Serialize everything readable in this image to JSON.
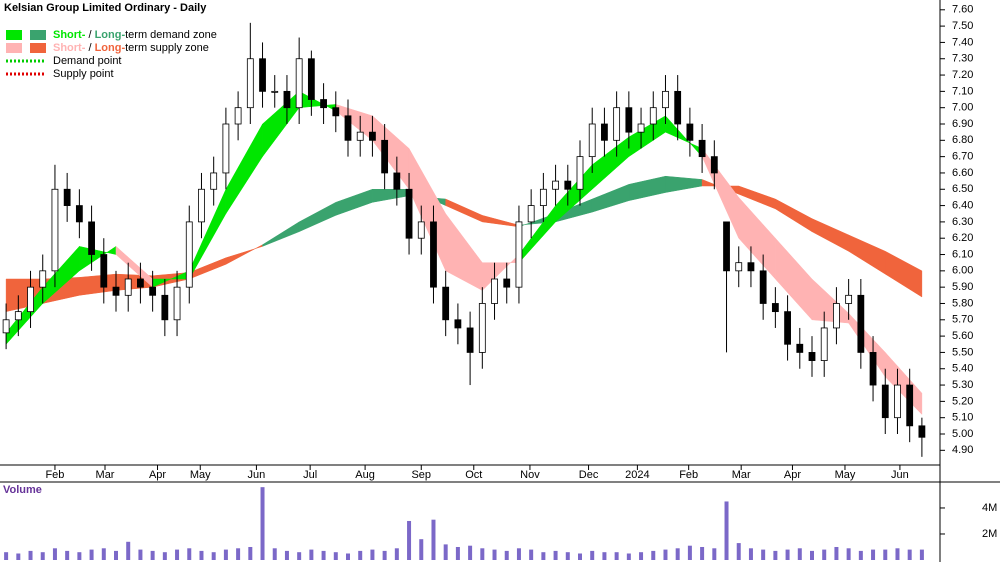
{
  "chart_data": [
    {
      "type": "candlestick",
      "title": "Kelsian Group Limited Ordinary - Daily",
      "x": [
        0,
        1,
        2,
        3,
        4,
        5,
        6,
        7,
        8,
        9,
        10,
        11,
        12,
        13,
        14,
        15,
        16,
        17,
        18,
        19,
        20,
        21,
        22,
        23,
        24,
        25,
        26,
        27,
        28,
        29,
        30,
        31,
        32,
        33,
        34,
        35,
        36,
        37,
        38,
        39,
        40,
        41,
        42,
        43,
        44,
        45,
        46,
        47,
        48,
        49,
        50,
        51,
        52,
        53,
        54,
        55,
        56,
        57,
        58,
        59,
        60,
        61,
        62,
        63,
        64,
        65,
        66,
        67,
        68,
        69,
        70,
        71,
        72,
        73,
        74,
        75
      ],
      "open": [
        5.62,
        5.7,
        5.75,
        5.9,
        6.0,
        6.5,
        6.4,
        6.3,
        6.1,
        5.9,
        5.85,
        5.95,
        5.9,
        5.85,
        5.7,
        5.9,
        6.3,
        6.5,
        6.6,
        6.9,
        7.0,
        7.3,
        7.1,
        7.1,
        7.0,
        7.3,
        7.05,
        7.0,
        6.95,
        6.8,
        6.85,
        6.8,
        6.6,
        6.5,
        6.2,
        6.3,
        5.9,
        5.7,
        5.65,
        5.5,
        5.8,
        5.95,
        5.9,
        6.3,
        6.4,
        6.5,
        6.55,
        6.5,
        6.7,
        6.9,
        6.8,
        7.0,
        6.85,
        6.9,
        7.0,
        7.1,
        6.9,
        6.8,
        6.7,
        6.3,
        6.0,
        6.05,
        6.0,
        5.8,
        5.75,
        5.55,
        5.5,
        5.45,
        5.65,
        5.8,
        5.85,
        5.5,
        5.3,
        5.1,
        5.3,
        5.05
      ],
      "high": [
        5.8,
        5.85,
        6.0,
        6.1,
        6.65,
        6.6,
        6.5,
        6.4,
        6.2,
        6.0,
        6.05,
        6.05,
        6.0,
        5.95,
        6.0,
        6.4,
        6.6,
        6.7,
        7.0,
        7.1,
        7.52,
        7.4,
        7.2,
        7.2,
        7.43,
        7.35,
        7.15,
        7.1,
        7.05,
        6.95,
        6.95,
        6.9,
        6.7,
        6.6,
        6.4,
        6.4,
        6.0,
        5.8,
        5.75,
        5.9,
        6.05,
        6.05,
        6.4,
        6.5,
        6.6,
        6.65,
        6.65,
        6.8,
        7.0,
        7.0,
        7.1,
        7.1,
        7.0,
        7.1,
        7.2,
        7.2,
        7.0,
        6.9,
        6.8,
        6.3,
        6.15,
        6.15,
        6.1,
        5.9,
        5.85,
        5.65,
        5.6,
        5.75,
        5.9,
        5.95,
        5.95,
        5.6,
        5.4,
        5.4,
        5.4,
        5.1
      ],
      "low": [
        5.52,
        5.6,
        5.65,
        5.8,
        5.9,
        6.3,
        6.2,
        6.0,
        5.8,
        5.75,
        5.75,
        5.8,
        5.75,
        5.6,
        5.6,
        5.8,
        6.2,
        6.4,
        6.5,
        6.8,
        6.9,
        7.0,
        7.0,
        6.9,
        6.9,
        6.95,
        6.9,
        6.85,
        6.7,
        6.7,
        6.7,
        6.5,
        6.4,
        6.1,
        6.1,
        5.8,
        5.6,
        5.55,
        5.3,
        5.4,
        5.7,
        5.8,
        5.8,
        6.2,
        6.3,
        6.4,
        6.4,
        6.4,
        6.6,
        6.7,
        6.7,
        6.75,
        6.75,
        6.8,
        6.9,
        6.8,
        6.7,
        6.6,
        6.5,
        5.5,
        5.9,
        5.9,
        5.7,
        5.65,
        5.45,
        5.4,
        5.35,
        5.35,
        5.55,
        5.7,
        5.4,
        5.2,
        5.0,
        5.0,
        4.95,
        4.86
      ],
      "close": [
        5.7,
        5.75,
        5.9,
        6.0,
        6.5,
        6.4,
        6.3,
        6.1,
        5.9,
        5.85,
        5.95,
        5.9,
        5.85,
        5.7,
        5.9,
        6.3,
        6.5,
        6.6,
        6.9,
        7.0,
        7.3,
        7.1,
        7.1,
        7.0,
        7.3,
        7.05,
        7.0,
        6.95,
        6.8,
        6.85,
        6.8,
        6.6,
        6.5,
        6.2,
        6.3,
        5.9,
        5.7,
        5.65,
        5.5,
        5.8,
        5.95,
        5.9,
        6.3,
        6.4,
        6.5,
        6.55,
        6.5,
        6.7,
        6.9,
        6.8,
        7.0,
        6.85,
        6.9,
        7.0,
        7.1,
        6.9,
        6.8,
        6.7,
        6.6,
        6.0,
        6.05,
        6.0,
        5.8,
        5.75,
        5.55,
        5.5,
        5.45,
        5.65,
        5.8,
        5.85,
        5.5,
        5.3,
        5.1,
        5.3,
        5.05,
        4.98
      ],
      "up_fill": "#ffffff",
      "down_fill": "#000000",
      "xlim": [
        -0.5,
        75.5
      ],
      "ylim": [
        4.81,
        7.66
      ],
      "xticks": [
        {
          "value": 4,
          "label": "Feb"
        },
        {
          "value": 8.1,
          "label": "Mar"
        },
        {
          "value": 12.4,
          "label": "Apr"
        },
        {
          "value": 15.9,
          "label": "May"
        },
        {
          "value": 20.5,
          "label": "Jun"
        },
        {
          "value": 24.9,
          "label": "Jul"
        },
        {
          "value": 29.4,
          "label": "Aug"
        },
        {
          "value": 34,
          "label": "Sep"
        },
        {
          "value": 38.3,
          "label": "Oct"
        },
        {
          "value": 42.9,
          "label": "Nov"
        },
        {
          "value": 47.7,
          "label": "Dec"
        },
        {
          "value": 51.7,
          "label": "2024"
        },
        {
          "value": 55.9,
          "label": "Feb"
        },
        {
          "value": 60.2,
          "label": "Mar"
        },
        {
          "value": 64.4,
          "label": "Apr"
        },
        {
          "value": 68.7,
          "label": "May"
        },
        {
          "value": 73.2,
          "label": "Jun"
        }
      ],
      "yticks": [
        {
          "value": 4.9,
          "label": "4.90"
        },
        {
          "value": 5.0,
          "label": "5.00"
        },
        {
          "value": 5.1,
          "label": "5.10"
        },
        {
          "value": 5.2,
          "label": "5.20"
        },
        {
          "value": 5.3,
          "label": "5.30"
        },
        {
          "value": 5.4,
          "label": "5.40"
        },
        {
          "value": 5.5,
          "label": "5.50"
        },
        {
          "value": 5.6,
          "label": "5.60"
        },
        {
          "value": 5.7,
          "label": "5.70"
        },
        {
          "value": 5.8,
          "label": "5.80"
        },
        {
          "value": 5.9,
          "label": "5.90"
        },
        {
          "value": 6.0,
          "label": "6.00"
        },
        {
          "value": 6.1,
          "label": "6.10"
        },
        {
          "value": 6.2,
          "label": "6.20"
        },
        {
          "value": 6.3,
          "label": "6.30"
        },
        {
          "value": 6.4,
          "label": "6.40"
        },
        {
          "value": 6.5,
          "label": "6.50"
        },
        {
          "value": 6.6,
          "label": "6.60"
        },
        {
          "value": 6.7,
          "label": "6.70"
        },
        {
          "value": 6.8,
          "label": "6.80"
        },
        {
          "value": 6.9,
          "label": "6.90"
        },
        {
          "value": 7.0,
          "label": "7.00"
        },
        {
          "value": 7.1,
          "label": "7.10"
        },
        {
          "value": 7.2,
          "label": "7.20"
        },
        {
          "value": 7.3,
          "label": "7.30"
        },
        {
          "value": 7.4,
          "label": "7.40"
        },
        {
          "value": 7.5,
          "label": "7.50"
        },
        {
          "value": 7.6,
          "label": "7.60"
        }
      ],
      "bands": {
        "x": [
          0,
          3,
          6,
          9,
          12,
          15,
          18,
          21,
          24,
          27,
          30,
          33,
          36,
          39,
          42,
          45,
          48,
          51,
          54,
          57,
          60,
          63,
          66,
          69,
          72,
          75
        ],
        "short_fast": [
          5.62,
          5.9,
          6.15,
          6.1,
          5.9,
          6.0,
          6.5,
          6.9,
          7.1,
          6.98,
          6.8,
          6.5,
          6.0,
          5.88,
          6.1,
          6.4,
          6.65,
          6.82,
          6.95,
          6.7,
          6.2,
          5.95,
          5.7,
          5.68,
          5.35,
          5.12
        ],
        "short_slow": [
          5.55,
          5.8,
          6.0,
          6.15,
          5.95,
          5.95,
          6.35,
          6.7,
          7.0,
          7.02,
          6.95,
          6.75,
          6.35,
          6.05,
          6.05,
          6.3,
          6.5,
          6.7,
          6.85,
          6.75,
          6.45,
          6.2,
          5.95,
          5.74,
          5.5,
          5.25
        ],
        "long_fast": [
          5.75,
          5.8,
          5.85,
          5.88,
          5.9,
          5.95,
          6.04,
          6.16,
          6.3,
          6.42,
          6.5,
          6.5,
          6.4,
          6.3,
          6.27,
          6.35,
          6.44,
          6.53,
          6.58,
          6.56,
          6.47,
          6.38,
          6.24,
          6.12,
          5.98,
          5.84
        ],
        "long_slow": [
          5.95,
          5.95,
          5.96,
          5.98,
          5.97,
          5.99,
          6.08,
          6.15,
          6.24,
          6.34,
          6.42,
          6.46,
          6.44,
          6.34,
          6.28,
          6.3,
          6.36,
          6.43,
          6.48,
          6.52,
          6.52,
          6.44,
          6.32,
          6.22,
          6.12,
          6.0
        ],
        "short_demand_color": "#00e600",
        "long_demand_color": "#3aa36e",
        "short_supply_color": "#ffb3b3",
        "long_supply_color": "#f0643c"
      },
      "legend": [
        {
          "zone": "demand",
          "parts": [
            "Short-",
            " / ",
            "Long-",
            "term demand zone"
          ]
        },
        {
          "zone": "supply",
          "parts": [
            "Short-",
            " / ",
            "Long-",
            "term supply zone"
          ]
        },
        {
          "point": "Demand point",
          "color": "#00cc00"
        },
        {
          "point": "Supply point",
          "color": "#e00000"
        }
      ]
    },
    {
      "type": "bar",
      "title": "Volume",
      "x": [
        0,
        1,
        2,
        3,
        4,
        5,
        6,
        7,
        8,
        9,
        10,
        11,
        12,
        13,
        14,
        15,
        16,
        17,
        18,
        19,
        20,
        21,
        22,
        23,
        24,
        25,
        26,
        27,
        28,
        29,
        30,
        31,
        32,
        33,
        34,
        35,
        36,
        37,
        38,
        39,
        40,
        41,
        42,
        43,
        44,
        45,
        46,
        47,
        48,
        49,
        50,
        51,
        52,
        53,
        54,
        55,
        56,
        57,
        58,
        59,
        60,
        61,
        62,
        63,
        64,
        65,
        66,
        67,
        68,
        69,
        70,
        71,
        72,
        73,
        74,
        75
      ],
      "values": [
        0.6,
        0.5,
        0.7,
        0.6,
        0.9,
        0.7,
        0.6,
        0.8,
        0.9,
        0.7,
        1.4,
        0.8,
        0.7,
        0.6,
        0.8,
        0.9,
        0.7,
        0.6,
        0.8,
        0.9,
        1.0,
        5.6,
        0.9,
        0.7,
        0.6,
        0.8,
        0.7,
        0.6,
        0.5,
        0.7,
        0.8,
        0.7,
        0.9,
        3.0,
        1.6,
        3.1,
        1.2,
        1.0,
        1.1,
        0.9,
        0.8,
        0.7,
        0.9,
        0.8,
        0.6,
        0.7,
        0.6,
        0.5,
        0.7,
        0.6,
        0.6,
        0.5,
        0.6,
        0.7,
        0.8,
        0.9,
        1.1,
        1.0,
        0.9,
        4.5,
        1.3,
        0.9,
        0.8,
        0.7,
        0.8,
        0.9,
        0.7,
        0.8,
        1.0,
        0.9,
        0.7,
        0.8,
        0.8,
        0.9,
        0.8,
        0.8
      ],
      "color": "#7b68c8",
      "xlim": [
        -0.5,
        75.5
      ],
      "ylim": [
        0,
        6.15
      ],
      "yticks": [
        {
          "value": 2,
          "label": "2M"
        },
        {
          "value": 4,
          "label": "4M"
        }
      ]
    }
  ]
}
